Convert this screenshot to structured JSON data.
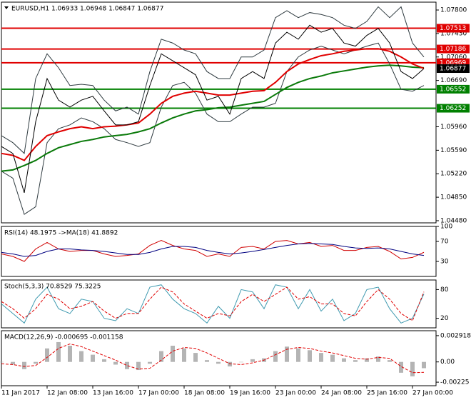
{
  "chart_data": [
    {
      "type": "line",
      "title": "EURUSD,H1 1.06933 1.06948 1.06847 1.06877",
      "categories": [
        "11 Jan 2017",
        null,
        null,
        null,
        "12 Jan 08:00",
        null,
        null,
        null,
        "13 Jan 16:00",
        null,
        null,
        null,
        "17 Jan 00:00",
        null,
        null,
        null,
        "18 Jan 08:00",
        null,
        null,
        null,
        "19 Jan 16:00",
        null,
        null,
        null,
        "23 Jan 00:00",
        null,
        null,
        null,
        "24 Jan 08:00",
        null,
        null,
        null,
        "25 Jan 16:00",
        null,
        null,
        null,
        "27 Jan 00:00",
        null
      ],
      "ylim": [
        1.04446,
        1.07924
      ],
      "yticks": [
        {
          "value": 1.078,
          "label": "1.07800"
        },
        {
          "value": 1.0743,
          "label": "1.07430"
        },
        {
          "value": 1.0706,
          "label": "1.07060"
        },
        {
          "value": 1.0669,
          "label": "1.06690"
        },
        {
          "value": 1.0596,
          "label": "1.05960"
        },
        {
          "value": 1.0559,
          "label": "1.05590"
        },
        {
          "value": 1.0522,
          "label": "1.05220"
        },
        {
          "value": 1.0485,
          "label": "1.04850"
        },
        {
          "value": 1.0448,
          "label": "1.04480"
        }
      ],
      "levels": [
        {
          "value": 1.07513,
          "color": "#e00000"
        },
        {
          "value": 1.07186,
          "color": "#e00000"
        },
        {
          "value": 1.06969,
          "color": "#e00000"
        },
        {
          "value": 1.06552,
          "color": "#008000"
        },
        {
          "value": 1.06252,
          "color": "#008000"
        }
      ],
      "last_price": 1.06877,
      "series": [
        {
          "type": "line",
          "color": "#2f3b40",
          "values": [
            1.0582,
            1.0571,
            1.0554,
            1.0672,
            1.0711,
            1.0689,
            1.0661,
            1.0663,
            1.0661,
            1.0638,
            1.0621,
            1.0627,
            1.0616,
            1.0683,
            1.0734,
            1.0728,
            1.0717,
            1.0711,
            1.0683,
            1.0672,
            1.0672,
            1.0706,
            1.0706,
            1.0717,
            1.0768,
            1.0779,
            1.0768,
            1.0776,
            1.0773,
            1.0768,
            1.0756,
            1.0751,
            1.0762,
            1.0785,
            1.0768,
            1.0785,
            1.0728,
            1.0706
          ]
        },
        {
          "type": "line",
          "color": "#2f3b40",
          "values": [
            1.0526,
            1.0515,
            1.0458,
            1.047,
            1.0571,
            1.0593,
            1.0599,
            1.061,
            1.0604,
            1.0593,
            1.0576,
            1.0571,
            1.0565,
            1.0571,
            1.0627,
            1.0661,
            1.0666,
            1.0649,
            1.0616,
            1.0604,
            1.0604,
            1.0616,
            1.0627,
            1.0627,
            1.0633,
            1.0683,
            1.0706,
            1.0717,
            1.0723,
            1.0717,
            1.0711,
            1.0717,
            1.0723,
            1.0728,
            1.0695,
            1.0655,
            1.0652,
            1.0661
          ]
        },
        {
          "type": "line",
          "color": "#0a7a0a",
          "width": 2,
          "values": [
            1.0526,
            1.0528,
            1.0535,
            1.0543,
            1.0554,
            1.0563,
            1.0568,
            1.0573,
            1.0576,
            1.058,
            1.0582,
            1.0584,
            1.0588,
            1.0593,
            1.0602,
            1.061,
            1.0616,
            1.0621,
            1.0623,
            1.0626,
            1.0627,
            1.063,
            1.0633,
            1.0636,
            1.0647,
            1.0658,
            1.0666,
            1.0672,
            1.0676,
            1.0681,
            1.0684,
            1.0687,
            1.069,
            1.0692,
            1.0693,
            1.0692,
            1.069,
            1.0689
          ]
        },
        {
          "type": "line",
          "color": "#e00000",
          "width": 2,
          "values": [
            1.0554,
            1.0551,
            1.0543,
            1.0565,
            1.0582,
            1.0588,
            1.0593,
            1.0596,
            1.0593,
            1.0596,
            1.0597,
            1.0599,
            1.0602,
            1.0616,
            1.0633,
            1.0644,
            1.0649,
            1.0652,
            1.0649,
            1.0646,
            1.0646,
            1.0649,
            1.0652,
            1.0653,
            1.0666,
            1.0683,
            1.0695,
            1.0702,
            1.0708,
            1.0711,
            1.0715,
            1.0717,
            1.0719,
            1.0719,
            1.0715,
            1.0706,
            1.0695,
            1.0688
          ]
        },
        {
          "type": "line",
          "color": "#000000",
          "values": [
            1.0565,
            1.0554,
            1.0492,
            1.0604,
            1.0672,
            1.0638,
            1.0627,
            1.0638,
            1.0644,
            1.0621,
            1.0599,
            1.0599,
            1.0604,
            1.0661,
            1.0711,
            1.07,
            1.0689,
            1.0678,
            1.0638,
            1.0644,
            1.0616,
            1.0672,
            1.0683,
            1.0672,
            1.0728,
            1.0745,
            1.0734,
            1.0756,
            1.0745,
            1.0751,
            1.0728,
            1.0723,
            1.074,
            1.0751,
            1.0728,
            1.0683,
            1.0672,
            1.06877
          ]
        }
      ]
    },
    {
      "type": "line",
      "title": "RSI(14) 48.1975 ->MA(18) 41.8892",
      "ylim": [
        0,
        100
      ],
      "yticks": [
        100,
        70,
        30
      ],
      "series": [
        {
          "type": "line",
          "color": "#d00000",
          "values": [
            45,
            40,
            30,
            55,
            68,
            55,
            50,
            52,
            52,
            45,
            40,
            42,
            45,
            62,
            72,
            62,
            55,
            52,
            40,
            45,
            40,
            58,
            60,
            55,
            70,
            72,
            65,
            68,
            60,
            62,
            52,
            52,
            58,
            60,
            50,
            35,
            38,
            48.2
          ]
        },
        {
          "type": "line",
          "color": "#000080",
          "values": [
            48,
            45,
            40,
            42,
            50,
            55,
            55,
            53,
            52,
            50,
            47,
            44,
            44,
            48,
            55,
            60,
            60,
            58,
            52,
            48,
            45,
            47,
            50,
            54,
            58,
            62,
            65,
            66,
            65,
            64,
            60,
            57,
            56,
            57,
            55,
            50,
            45,
            41.9
          ]
        }
      ]
    },
    {
      "type": "line",
      "title": "Stoch(5,3,3) 70.8529 75.3225",
      "ylim": [
        0,
        100
      ],
      "yticks": [
        80,
        20
      ],
      "series": [
        {
          "type": "line",
          "color": "#3f9ab0",
          "values": [
            50,
            30,
            10,
            60,
            85,
            40,
            30,
            60,
            55,
            20,
            15,
            40,
            30,
            85,
            90,
            60,
            40,
            30,
            10,
            45,
            20,
            80,
            75,
            40,
            90,
            85,
            40,
            80,
            35,
            60,
            15,
            30,
            80,
            85,
            40,
            10,
            20,
            70.9
          ]
        },
        {
          "type": "line",
          "color": "#e00000",
          "dash": true,
          "values": [
            55,
            40,
            20,
            40,
            70,
            60,
            40,
            45,
            55,
            35,
            20,
            30,
            30,
            60,
            85,
            75,
            50,
            35,
            20,
            30,
            25,
            55,
            70,
            55,
            70,
            85,
            60,
            65,
            50,
            50,
            30,
            25,
            55,
            80,
            60,
            30,
            15,
            75.3
          ]
        }
      ]
    },
    {
      "type": "bar",
      "title": "MACD(12,26,9) -0.000695 -0.001158",
      "ylim": [
        -0.002642,
        0.003466
      ],
      "yticks": [
        0.002918,
        {
          "value": 0,
          "label": "0.00"
        },
        -0.00225
      ],
      "series": [
        {
          "type": "bar",
          "color": "#b4b4b4",
          "values": [
            0,
            -0.0003,
            -0.0008,
            -0.0002,
            0.0015,
            0.0022,
            0.0018,
            0.0012,
            0.0008,
            0.0003,
            -0.0003,
            -0.0008,
            -0.0009,
            -0.0002,
            0.0012,
            0.0018,
            0.0015,
            0.001,
            0.0002,
            -0.0002,
            -0.0005,
            0,
            0.0003,
            0.0004,
            0.0012,
            0.0017,
            0.0015,
            0.0013,
            0.001,
            0.0008,
            0.0004,
            0.0002,
            0.0004,
            0.0006,
            0.0002,
            -0.0012,
            -0.0016,
            -0.000695
          ]
        },
        {
          "type": "line",
          "color": "#e00000",
          "dash": true,
          "values": [
            -0.0002,
            -0.0003,
            -0.0005,
            -0.0004,
            0.0005,
            0.0015,
            0.002,
            0.0017,
            0.0012,
            0.0007,
            0.0002,
            -0.0004,
            -0.0008,
            -0.0007,
            0.0002,
            0.0012,
            0.0016,
            0.0015,
            0.001,
            0.0004,
            -0.0002,
            -0.0003,
            -0.0001,
            0.0002,
            0.0008,
            0.0014,
            0.0016,
            0.0015,
            0.0012,
            0.001,
            0.0007,
            0.0004,
            0.0003,
            0.0005,
            0.0004,
            -0.0005,
            -0.0012,
            -0.001158
          ]
        }
      ]
    }
  ]
}
